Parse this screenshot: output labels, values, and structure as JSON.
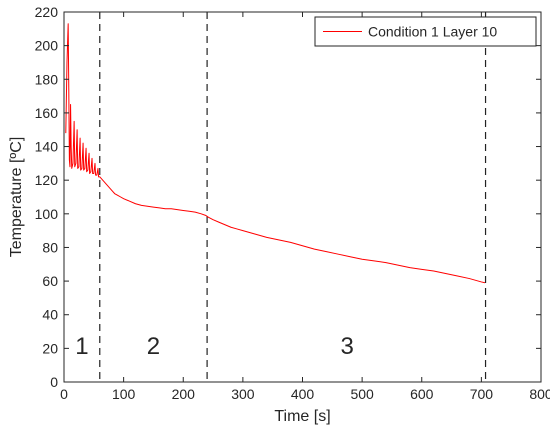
{
  "chart_data": {
    "type": "line",
    "xlabel": "Time [s]",
    "ylabel": "Temperature [ºC]",
    "xlim": [
      0,
      800
    ],
    "ylim": [
      0,
      220
    ],
    "xticks": [
      0,
      100,
      200,
      300,
      400,
      500,
      600,
      700,
      800
    ],
    "yticks": [
      0,
      20,
      40,
      60,
      80,
      100,
      120,
      140,
      160,
      180,
      200,
      220
    ],
    "grid": false,
    "legend_position": "top-right",
    "series": [
      {
        "name": "Condition 1 Layer 10",
        "color": "#ff0000",
        "x": [
          3,
          5,
          7,
          8,
          9,
          10,
          11,
          12,
          13,
          15,
          17,
          18,
          20,
          22,
          23,
          25,
          27,
          28,
          30,
          32,
          33,
          35,
          37,
          38,
          40,
          42,
          43,
          45,
          47,
          48,
          50,
          52,
          53,
          55,
          57,
          58,
          60,
          65,
          70,
          75,
          80,
          85,
          90,
          95,
          100,
          110,
          120,
          130,
          140,
          150,
          160,
          170,
          180,
          190,
          200,
          210,
          220,
          230,
          238,
          242,
          250,
          260,
          270,
          280,
          290,
          300,
          320,
          340,
          360,
          380,
          400,
          420,
          440,
          460,
          480,
          500,
          520,
          540,
          560,
          580,
          600,
          620,
          640,
          660,
          680,
          700,
          706
        ],
        "y": [
          148,
          190,
          213,
          175,
          132,
          128,
          165,
          140,
          127,
          130,
          155,
          128,
          130,
          150,
          127,
          128,
          145,
          126,
          127,
          142,
          126,
          127,
          139,
          125,
          126,
          136,
          124,
          125,
          133,
          124,
          124,
          130,
          123,
          123,
          127,
          122,
          122,
          120,
          118,
          116,
          114,
          112,
          111,
          110,
          109,
          107.5,
          106,
          105,
          104.5,
          104,
          103.5,
          103,
          103,
          102.5,
          102,
          101.5,
          101,
          100,
          99,
          98,
          96.5,
          95,
          93.5,
          92,
          91,
          90,
          88,
          86,
          84.5,
          83,
          81,
          79,
          77.5,
          76,
          74.5,
          73,
          72,
          71,
          69.5,
          68,
          67,
          66,
          64.5,
          63,
          61.5,
          59.5,
          59
        ]
      }
    ],
    "reference_lines_x": [
      60,
      240,
      707
    ],
    "phase_labels": [
      {
        "text": "1",
        "x": 30,
        "y": 22
      },
      {
        "text": "2",
        "x": 150,
        "y": 22
      },
      {
        "text": "3",
        "x": 475,
        "y": 22
      }
    ]
  }
}
